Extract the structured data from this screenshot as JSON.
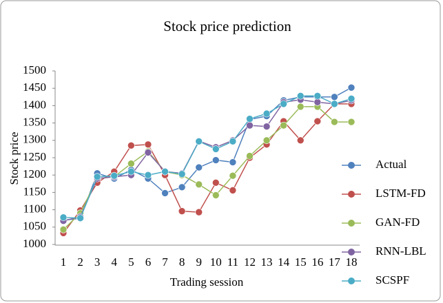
{
  "chart_data": {
    "type": "line",
    "title": "Stock price prediction",
    "x_label": "Trading session",
    "y_label": "Stock price",
    "categories": [
      "1",
      "2",
      "3",
      "4",
      "5",
      "6",
      "7",
      "8",
      "9",
      "10",
      "11",
      "12",
      "13",
      "14",
      "15",
      "16",
      "17",
      "18"
    ],
    "ylim": [
      1000,
      1500
    ],
    "yticks": [
      1000,
      1050,
      1100,
      1150,
      1200,
      1250,
      1300,
      1350,
      1400,
      1450,
      1500
    ],
    "grid": false,
    "legend": "right",
    "series": [
      {
        "name": "Actual",
        "color": "#4f81bd",
        "values": [
          1070,
          1075,
          1205,
          1190,
          1215,
          1190,
          1148,
          1165,
          1222,
          1243,
          1237,
          1360,
          1370,
          1415,
          1425,
          1425,
          1425,
          1452
        ]
      },
      {
        "name": "LSTM-FD",
        "color": "#c0504d",
        "values": [
          1033,
          1098,
          1178,
          1210,
          1285,
          1288,
          1200,
          1096,
          1093,
          1178,
          1156,
          1250,
          1288,
          1355,
          1300,
          1355,
          1405,
          1405
        ]
      },
      {
        "name": "GAN-FD",
        "color": "#9bbb59",
        "values": [
          1043,
          1090,
          1190,
          1195,
          1233,
          1268,
          1210,
          1200,
          1173,
          1142,
          1198,
          1255,
          1300,
          1343,
          1397,
          1397,
          1353,
          1353
        ]
      },
      {
        "name": "RNN-LBL",
        "color": "#8064a2",
        "values": [
          1068,
          1080,
          1190,
          1195,
          1200,
          1265,
          1210,
          1205,
          1298,
          1280,
          1300,
          1343,
          1340,
          1410,
          1417,
          1410,
          1405,
          1415
        ]
      },
      {
        "name": "SCSPF",
        "color": "#4bacc6",
        "values": [
          1078,
          1076,
          1195,
          1198,
          1210,
          1200,
          1210,
          1203,
          1297,
          1275,
          1297,
          1362,
          1377,
          1405,
          1428,
          1428,
          1405,
          1420
        ]
      }
    ]
  }
}
